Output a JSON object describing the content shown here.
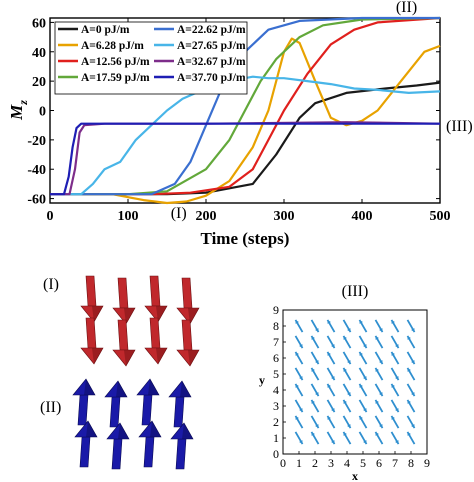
{
  "chart_data": [
    {
      "type": "line",
      "xlabel": "Time (steps)",
      "ylabel": "M",
      "ylabel_sub": "z",
      "xlim": [
        0,
        500
      ],
      "ylim": [
        -63,
        63
      ],
      "xticks": [
        0,
        100,
        200,
        300,
        400,
        500
      ],
      "yticks": [
        -60,
        -40,
        -20,
        0,
        20,
        40,
        60
      ],
      "grid": false,
      "legend_position": "top-left",
      "annotations": [
        {
          "label": "(I)",
          "x": 165,
          "y": -63
        },
        {
          "label": "(II)",
          "x": 475,
          "y": 66
        },
        {
          "label": "(III)",
          "x": 510,
          "y": -10
        }
      ],
      "series": [
        {
          "name": "A=0 pJ/m",
          "color": "#1a1a1a",
          "points": [
            [
              0,
              -57
            ],
            [
              150,
              -57
            ],
            [
              200,
              -56
            ],
            [
              260,
              -50
            ],
            [
              290,
              -30
            ],
            [
              320,
              -5
            ],
            [
              340,
              5
            ],
            [
              380,
              12
            ],
            [
              430,
              15
            ],
            [
              470,
              17
            ],
            [
              500,
              19
            ]
          ]
        },
        {
          "name": "A=6.28 pJ/m",
          "color": "#e8a200",
          "points": [
            [
              0,
              -57
            ],
            [
              80,
              -57
            ],
            [
              120,
              -61
            ],
            [
              150,
              -63
            ],
            [
              175,
              -62
            ],
            [
              200,
              -58
            ],
            [
              230,
              -48
            ],
            [
              260,
              -25
            ],
            [
              280,
              0
            ],
            [
              300,
              40
            ],
            [
              310,
              49
            ],
            [
              320,
              46
            ],
            [
              340,
              20
            ],
            [
              360,
              -5
            ],
            [
              380,
              -10
            ],
            [
              400,
              -7
            ],
            [
              420,
              0
            ],
            [
              450,
              20
            ],
            [
              480,
              40
            ],
            [
              500,
              44
            ]
          ]
        },
        {
          "name": "A=12.56 pJ/m",
          "color": "#e0201d",
          "points": [
            [
              0,
              -57
            ],
            [
              130,
              -57
            ],
            [
              180,
              -56
            ],
            [
              230,
              -52
            ],
            [
              260,
              -40
            ],
            [
              280,
              -20
            ],
            [
              300,
              0
            ],
            [
              330,
              25
            ],
            [
              360,
              45
            ],
            [
              390,
              55
            ],
            [
              420,
              60
            ],
            [
              500,
              63
            ]
          ]
        },
        {
          "name": "A=17.59 pJ/m",
          "color": "#62a83a",
          "points": [
            [
              0,
              -57
            ],
            [
              100,
              -57
            ],
            [
              150,
              -55
            ],
            [
              200,
              -40
            ],
            [
              230,
              -20
            ],
            [
              250,
              0
            ],
            [
              270,
              20
            ],
            [
              290,
              35
            ],
            [
              320,
              50
            ],
            [
              350,
              58
            ],
            [
              400,
              62
            ],
            [
              500,
              63
            ]
          ]
        },
        {
          "name": "A=22.62 pJ/m",
          "color": "#3a6fd0",
          "points": [
            [
              0,
              -57
            ],
            [
              100,
              -57
            ],
            [
              130,
              -57
            ],
            [
              160,
              -50
            ],
            [
              180,
              -35
            ],
            [
              200,
              -10
            ],
            [
              220,
              15
            ],
            [
              250,
              40
            ],
            [
              280,
              55
            ],
            [
              320,
              61
            ],
            [
              400,
              63
            ],
            [
              500,
              63
            ]
          ]
        },
        {
          "name": "A=27.65 pJ/m",
          "color": "#48b5e8",
          "points": [
            [
              0,
              -57
            ],
            [
              40,
              -57
            ],
            [
              55,
              -50
            ],
            [
              70,
              -40
            ],
            [
              90,
              -35
            ],
            [
              110,
              -20
            ],
            [
              130,
              -10
            ],
            [
              150,
              0
            ],
            [
              170,
              8
            ],
            [
              200,
              15
            ],
            [
              230,
              20
            ],
            [
              260,
              23
            ],
            [
              280,
              22
            ],
            [
              300,
              22
            ],
            [
              330,
              20
            ],
            [
              360,
              18
            ],
            [
              390,
              15
            ],
            [
              420,
              14
            ],
            [
              460,
              12
            ],
            [
              500,
              13
            ]
          ]
        },
        {
          "name": "A=32.67 pJ/m",
          "color": "#7d2d8a",
          "points": [
            [
              0,
              -57
            ],
            [
              25,
              -57
            ],
            [
              32,
              -40
            ],
            [
              38,
              -15
            ],
            [
              44,
              -10
            ],
            [
              70,
              -9
            ],
            [
              200,
              -9
            ],
            [
              380,
              -8
            ],
            [
              500,
              -9
            ]
          ]
        },
        {
          "name": "A=37.70 pJ/m",
          "color": "#1e1eb4",
          "points": [
            [
              0,
              -57
            ],
            [
              18,
              -57
            ],
            [
              24,
              -45
            ],
            [
              29,
              -25
            ],
            [
              34,
              -12
            ],
            [
              40,
              -9
            ],
            [
              80,
              -9
            ],
            [
              500,
              -9
            ]
          ]
        }
      ]
    },
    {
      "type": "scatter",
      "title": "(III)",
      "xlabel": "x",
      "ylabel": "y",
      "xlim": [
        0,
        9
      ],
      "ylim": [
        0,
        9
      ],
      "xticks": [
        0,
        1,
        2,
        3,
        4,
        5,
        6,
        7,
        8,
        9
      ],
      "yticks": [
        0,
        1,
        2,
        3,
        4,
        5,
        6,
        7,
        8,
        9
      ],
      "grid": false,
      "arrow_color": "#2f8fcf",
      "quiver": "8 x 8 grid of arrows pointing down-left to up-right alternately"
    }
  ],
  "figure_labels": {
    "panel_I": "(I)",
    "panel_II": "(II)"
  },
  "colors": {
    "arrow_I": "#c0282c",
    "arrow_II": "#1a1aa8"
  }
}
